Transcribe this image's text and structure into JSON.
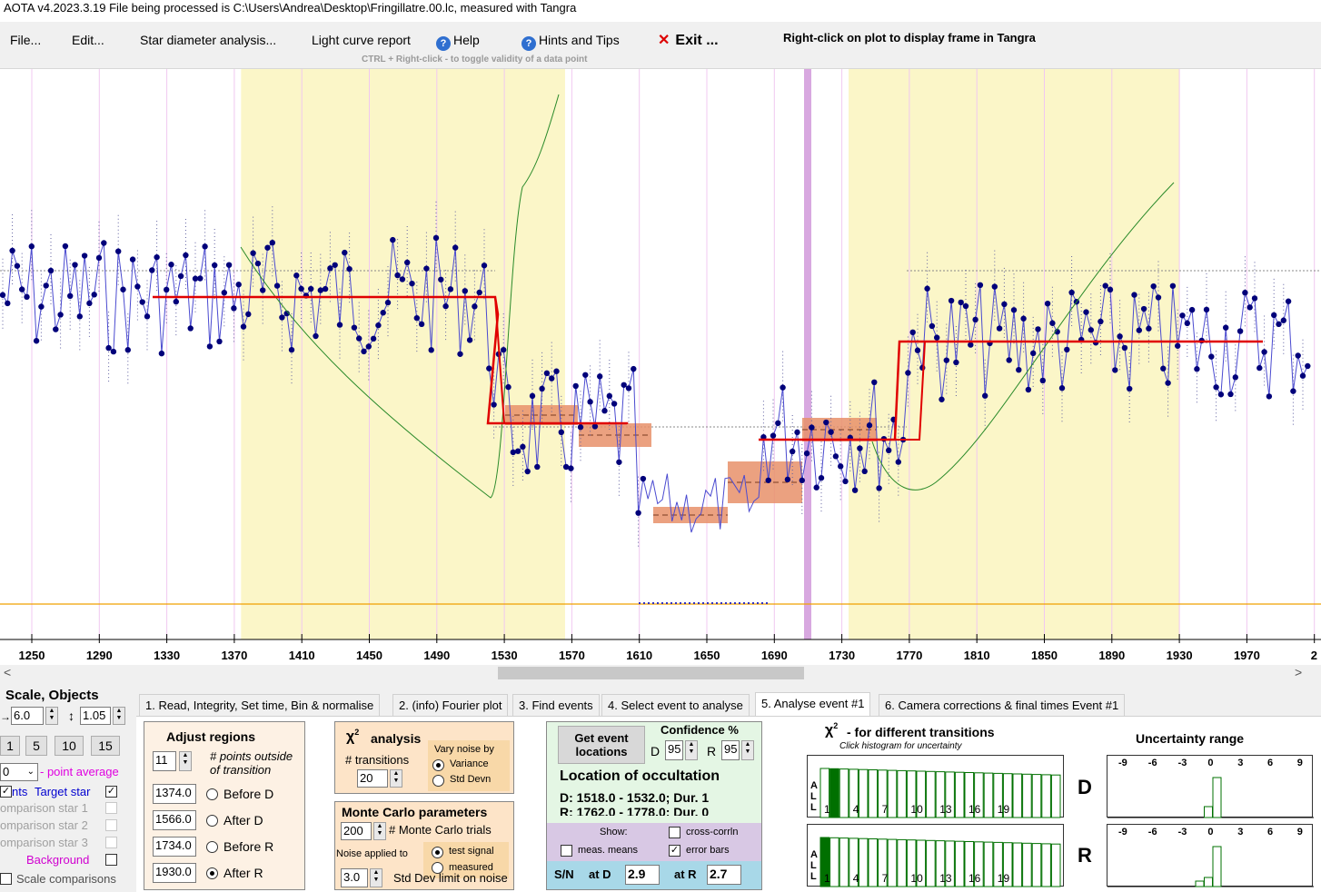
{
  "window": {
    "title": "AOTA v4.2023.3.19    File being processed is C:\\Users\\Andrea\\Desktop\\Fringillatre.00.lc, measured with Tangra"
  },
  "menu": {
    "file": "File...",
    "edit": "Edit...",
    "star_diameter": "Star diameter analysis...",
    "light_curve_report": "Light curve report",
    "help": "Help",
    "hints_tips": "Hints and Tips",
    "exit": "Exit ...",
    "right_click_hint": "Right-click on plot to display frame in Tangra",
    "ctrl_hint": "CTRL + Right-click   -  to toggle validity of a data point"
  },
  "plot": {
    "x_ticks": [
      "1250",
      "1290",
      "1330",
      "1370",
      "1410",
      "1450",
      "1490",
      "1530",
      "1570",
      "1610",
      "1650",
      "1690",
      "1730",
      "1770",
      "1810",
      "1850",
      "1890",
      "1930",
      "1970",
      "2"
    ],
    "colors": {
      "region_fill": "#fbf6c8",
      "fit_line": "#e00000",
      "data_line": "#4a4ad0",
      "data_point": "#00007a",
      "chi2_line": "#2a8a2a",
      "error_box": "#e8906a",
      "frame_marker": "#d8a8e0",
      "baseline": "#f0a000"
    }
  },
  "scrollbar": {
    "left_arrow": "<",
    "right_arrow": ">"
  },
  "side": {
    "heading": "Scale,  Objects",
    "h_scale_value": "6.0",
    "v_scale_value": "1.05",
    "h_scale_icon": "→",
    "v_scale_icon": "↕",
    "quick_buttons": [
      "1",
      "5",
      "10",
      "15"
    ],
    "avg_value": "0",
    "avg_label": "- point average",
    "target_prefix": "nts",
    "target_label": "Target star",
    "comparison_1": "omparison star 1",
    "comparison_2": "omparison star 2",
    "comparison_3": "omparison star 3",
    "background": "Background",
    "scale_comparisons": "Scale comparisons"
  },
  "tabs": [
    "1.  Read, Integrity, Set time, Bin & normalise",
    "2. (info) Fourier plot",
    "3. Find events",
    "4. Select event to analyse",
    "5. Analyse event #1",
    "6. Camera corrections & final times Event #1"
  ],
  "adjust": {
    "title": "Adjust regions",
    "points_outside_value": "11",
    "points_outside_label_1": "# points outside",
    "points_outside_label_2": "of transition",
    "before_d_value": "1374.0",
    "before_d_label": "Before D",
    "after_d_value": "1566.0",
    "after_d_label": "After D",
    "before_r_value": "1734.0",
    "before_r_label": "Before R",
    "after_r_value": "1930.0",
    "after_r_label": "After R"
  },
  "chi2_analysis": {
    "title": "analysis",
    "chi_symbol": "χ",
    "sup": "2",
    "transitions_label": "# transitions",
    "transitions_value": "20",
    "vary_noise_label": "Vary noise by",
    "variance": "Variance",
    "std_devn": "Std Devn"
  },
  "monte_carlo": {
    "title": "Monte Carlo parameters",
    "trials_value": "200",
    "trials_label": "# Monte Carlo trials",
    "noise_applied": "Noise applied to",
    "test_signal": "test signal",
    "measured": "measured",
    "std_limit_value": "3.0",
    "std_limit_label": "Std Dev limit on noise"
  },
  "event": {
    "get_button_line1": "Get event",
    "get_button_line2": "locations",
    "confidence_label": "Confidence %",
    "d_label": "D",
    "d_value": "95",
    "r_label": "R",
    "r_value": "95",
    "location_title": "Location of occultation",
    "d_line": "D: 1518.0 - 1532.0; Dur. 1",
    "r_line": "R: 1762.0 - 1778.0; Dur. 0",
    "show_label": "Show:",
    "cross_corrln": "cross-corrln",
    "meas_means": "meas. means",
    "error_bars": "error bars",
    "sn_label": "S/N",
    "at_d_label": "at D",
    "at_d_value": "2.9",
    "at_r_label": "at R",
    "at_r_value": "2.7"
  },
  "chi2_transitions": {
    "title": "- for different transitions",
    "chi_symbol": "χ",
    "sup": "2",
    "subtitle": "Click histogram for uncertainty",
    "all_letters": [
      "A",
      "L",
      "L"
    ],
    "x_labels": [
      "1",
      "4",
      "7",
      "10",
      "13",
      "16",
      "19"
    ],
    "d_label": "D",
    "r_label": "R"
  },
  "uncertainty": {
    "title": "Uncertainty range",
    "x_labels": [
      "-9",
      "-6",
      "-3",
      "0",
      "3",
      "6",
      "9"
    ]
  }
}
